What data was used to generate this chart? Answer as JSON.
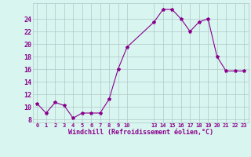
{
  "x": [
    0,
    1,
    2,
    3,
    4,
    5,
    6,
    7,
    8,
    9,
    10,
    13,
    14,
    15,
    16,
    17,
    18,
    19,
    20,
    21,
    22,
    23
  ],
  "y": [
    10.5,
    9.0,
    10.7,
    10.2,
    8.2,
    9.0,
    9.0,
    9.0,
    11.2,
    16.0,
    19.5,
    23.5,
    25.5,
    25.5,
    24.0,
    22.0,
    23.5,
    24.0,
    18.0,
    15.7,
    15.7,
    15.7
  ],
  "xticks": [
    0,
    1,
    2,
    3,
    4,
    5,
    6,
    7,
    8,
    9,
    10,
    13,
    14,
    15,
    16,
    17,
    18,
    19,
    20,
    21,
    22,
    23
  ],
  "xtick_labels": [
    "0",
    "1",
    "2",
    "3",
    "4",
    "5",
    "6",
    "7",
    "8",
    "9",
    "10",
    "13",
    "14",
    "15",
    "16",
    "17",
    "18",
    "19",
    "20",
    "21",
    "22",
    "23"
  ],
  "yticks": [
    8,
    10,
    12,
    14,
    16,
    18,
    20,
    22,
    24
  ],
  "ylim": [
    7.5,
    26.5
  ],
  "xlim": [
    -0.5,
    23.5
  ],
  "xlabel": "Windchill (Refroidissement éolien,°C)",
  "line_color": "#8B008B",
  "marker": "*",
  "marker_size": 3,
  "bg_color": "#d8f5f0",
  "grid_color": "#b0c8c8",
  "xlabel_color": "#8B008B",
  "tick_color": "#8B008B"
}
